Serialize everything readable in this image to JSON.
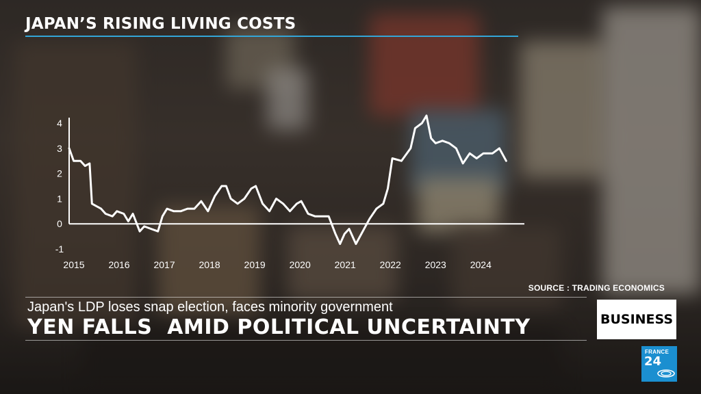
{
  "top_title": "JAPAN’S RISING LIVING COSTS",
  "source": "SOURCE : TRADING ECONOMICS",
  "lower_third": {
    "subhead": "Japan's LDP loses snap election, faces minority government",
    "headline": "YEN FALLS  AMID POLITICAL UNCERTAINTY",
    "badge": "BUSINESS"
  },
  "logo": {
    "line1": "FRANCE",
    "line2": "24"
  },
  "colors": {
    "accent_rule": "#33a6d8",
    "line": "#ffffff",
    "logo_bg": "#1b8fd0"
  },
  "chart_data": {
    "type": "line",
    "title": "",
    "xlabel": "",
    "ylabel": "",
    "x_ticks": [
      "2015",
      "2016",
      "2017",
      "2018",
      "2019",
      "2020",
      "2021",
      "2022",
      "2023",
      "2024"
    ],
    "y_ticks": [
      "4",
      "3",
      "2",
      "1",
      "0",
      "-1"
    ],
    "ylim": [
      -1,
      4
    ],
    "xlim": [
      2015.0,
      2025.0
    ],
    "grid": false,
    "series": [
      {
        "values": [
          [
            2015.0,
            3.0
          ],
          [
            2015.1,
            2.5
          ],
          [
            2015.25,
            2.5
          ],
          [
            2015.35,
            2.3
          ],
          [
            2015.45,
            2.4
          ],
          [
            2015.5,
            0.8
          ],
          [
            2015.6,
            0.7
          ],
          [
            2015.7,
            0.6
          ],
          [
            2015.8,
            0.4
          ],
          [
            2015.95,
            0.3
          ],
          [
            2016.05,
            0.5
          ],
          [
            2016.2,
            0.4
          ],
          [
            2016.3,
            0.1
          ],
          [
            2016.4,
            0.4
          ],
          [
            2016.55,
            -0.3
          ],
          [
            2016.65,
            -0.1
          ],
          [
            2016.8,
            -0.2
          ],
          [
            2016.95,
            -0.3
          ],
          [
            2017.05,
            0.3
          ],
          [
            2017.15,
            0.6
          ],
          [
            2017.3,
            0.5
          ],
          [
            2017.45,
            0.5
          ],
          [
            2017.6,
            0.6
          ],
          [
            2017.75,
            0.6
          ],
          [
            2017.9,
            0.9
          ],
          [
            2018.05,
            0.5
          ],
          [
            2018.2,
            1.1
          ],
          [
            2018.35,
            1.5
          ],
          [
            2018.45,
            1.5
          ],
          [
            2018.55,
            1.0
          ],
          [
            2018.7,
            0.8
          ],
          [
            2018.85,
            1.0
          ],
          [
            2019.0,
            1.4
          ],
          [
            2019.1,
            1.5
          ],
          [
            2019.25,
            0.8
          ],
          [
            2019.4,
            0.5
          ],
          [
            2019.55,
            1.0
          ],
          [
            2019.7,
            0.8
          ],
          [
            2019.85,
            0.5
          ],
          [
            2020.0,
            0.8
          ],
          [
            2020.1,
            0.9
          ],
          [
            2020.25,
            0.4
          ],
          [
            2020.4,
            0.3
          ],
          [
            2020.55,
            0.3
          ],
          [
            2020.7,
            0.3
          ],
          [
            2020.85,
            -0.4
          ],
          [
            2020.95,
            -0.8
          ],
          [
            2021.05,
            -0.4
          ],
          [
            2021.15,
            -0.2
          ],
          [
            2021.3,
            -0.8
          ],
          [
            2021.45,
            -0.3
          ],
          [
            2021.6,
            0.2
          ],
          [
            2021.75,
            0.6
          ],
          [
            2021.9,
            0.8
          ],
          [
            2022.0,
            1.4
          ],
          [
            2022.1,
            2.6
          ],
          [
            2022.3,
            2.5
          ],
          [
            2022.5,
            3.0
          ],
          [
            2022.6,
            3.8
          ],
          [
            2022.75,
            4.0
          ],
          [
            2022.85,
            4.3
          ],
          [
            2022.95,
            3.4
          ],
          [
            2023.05,
            3.2
          ],
          [
            2023.2,
            3.3
          ],
          [
            2023.35,
            3.2
          ],
          [
            2023.5,
            3.0
          ],
          [
            2023.65,
            2.4
          ],
          [
            2023.8,
            2.8
          ],
          [
            2023.95,
            2.6
          ],
          [
            2024.1,
            2.8
          ],
          [
            2024.3,
            2.8
          ],
          [
            2024.45,
            3.0
          ],
          [
            2024.6,
            2.5
          ]
        ]
      }
    ]
  }
}
